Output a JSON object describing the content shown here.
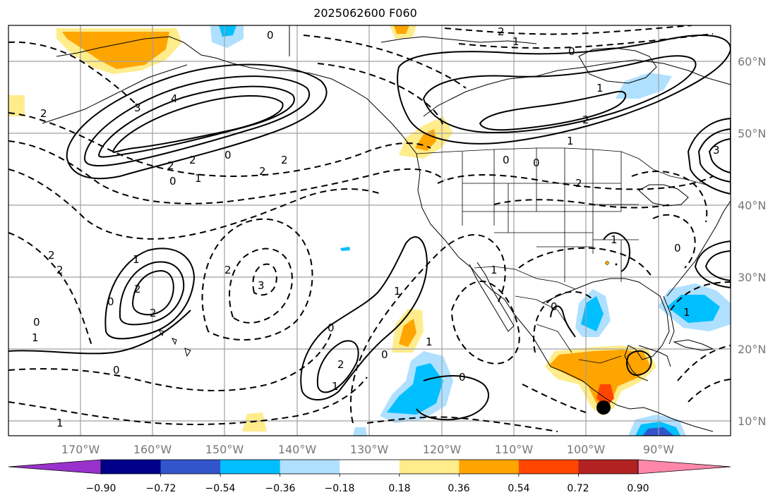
{
  "title": "2025062600 F060",
  "lon_labels": [
    "170°W",
    "160°W",
    "150°W",
    "140°W",
    "130°W",
    "120°W",
    "110°W",
    "100°W",
    "90°W"
  ],
  "lat_labels": [
    "60°N",
    "50°N",
    "40°N",
    "30°N",
    "20°N",
    "10°N"
  ],
  "colorbar": {
    "ticks": [
      "−0.90",
      "−0.72",
      "−0.54",
      "−0.36",
      "−0.18",
      "0.18",
      "0.36",
      "0.54",
      "0.72",
      "0.90"
    ],
    "colors": [
      "#9932cc",
      "#00008b",
      "#3355cc",
      "#00bfff",
      "#b0e0ff",
      "#ffffff",
      "#ffec8b",
      "#ffa500",
      "#ff4500",
      "#b22222",
      "#ff88aa"
    ]
  },
  "contour_labels": [
    {
      "text": "0"
    },
    {
      "text": "2"
    },
    {
      "text": "3"
    },
    {
      "text": "4"
    },
    {
      "text": "2"
    },
    {
      "text": "0"
    },
    {
      "text": "2"
    },
    {
      "text": "0"
    },
    {
      "text": "1"
    },
    {
      "text": "2"
    },
    {
      "text": "2"
    },
    {
      "text": "3"
    },
    {
      "text": "2"
    },
    {
      "text": "1"
    },
    {
      "text": "2"
    },
    {
      "text": "2"
    },
    {
      "text": "0"
    },
    {
      "text": "1"
    },
    {
      "text": "2"
    },
    {
      "text": "2"
    },
    {
      "text": "2"
    },
    {
      "text": "0"
    },
    {
      "text": "0"
    },
    {
      "text": "1"
    },
    {
      "text": "1"
    },
    {
      "text": "0"
    },
    {
      "text": "2"
    },
    {
      "text": "1"
    },
    {
      "text": "0"
    },
    {
      "text": "1"
    },
    {
      "text": "0"
    },
    {
      "text": "1"
    },
    {
      "text": "1"
    },
    {
      "text": "2"
    },
    {
      "text": "0"
    },
    {
      "text": "0"
    },
    {
      "text": "1"
    },
    {
      "text": "1"
    },
    {
      "text": "0"
    },
    {
      "text": "0"
    },
    {
      "text": "0"
    },
    {
      "text": "1"
    },
    {
      "text": "1"
    },
    {
      "text": "2"
    },
    {
      "text": "3"
    }
  ]
}
